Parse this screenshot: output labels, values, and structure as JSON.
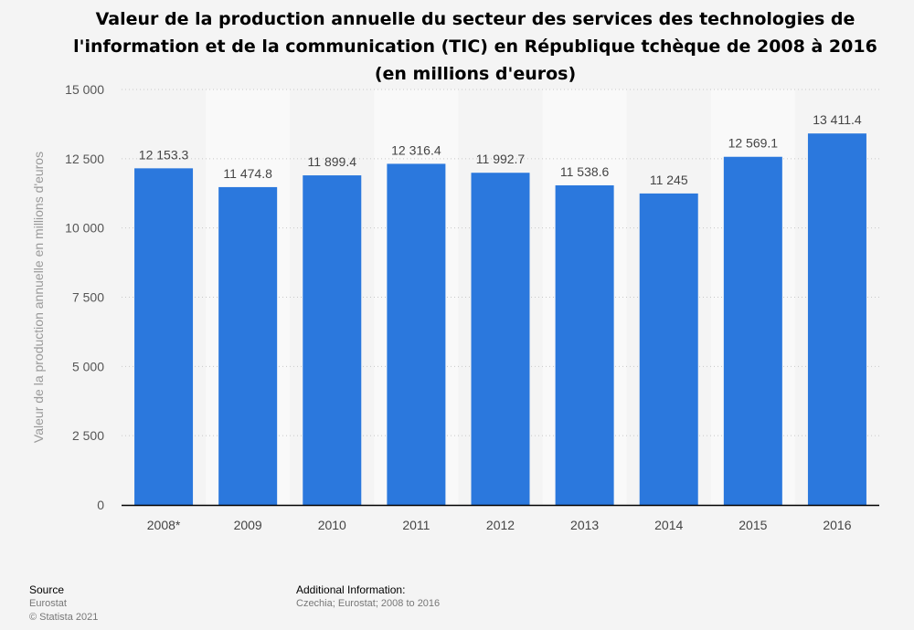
{
  "chart_data": {
    "type": "bar",
    "title": "Valeur de la production annuelle du secteur des services des technologies de l'information et de la communication (TIC) en République tchèque de 2008 à 2016 (en millions d'euros)",
    "categories": [
      "2008*",
      "2009",
      "2010",
      "2011",
      "2012",
      "2013",
      "2014",
      "2015",
      "2016"
    ],
    "values": [
      12153.3,
      11474.8,
      11899.4,
      12316.4,
      11992.7,
      11538.6,
      11245,
      12569.1,
      13411.4
    ],
    "value_labels": [
      "12 153.3",
      "11 474.8",
      "11 899.4",
      "12 316.4",
      "11 992.7",
      "11 538.6",
      "11 245",
      "12 569.1",
      "13 411.4"
    ],
    "ylabel": "Valeur de la production annuelle en millions d'euros",
    "ylim": [
      0,
      15000
    ],
    "yticks": [
      0,
      2500,
      5000,
      7500,
      10000,
      12500,
      15000
    ],
    "ytick_labels": [
      "0",
      "2 500",
      "5 000",
      "7 500",
      "10 000",
      "12 500",
      "15 000"
    ],
    "grid": true,
    "bar_color": "#2b78dd"
  },
  "footer": {
    "source_heading": "Source",
    "source_text": "Eurostat",
    "copyright": "© Statista 2021",
    "additional_heading": "Additional Information:",
    "additional_text": "Czechia; Eurostat; 2008 to 2016"
  }
}
